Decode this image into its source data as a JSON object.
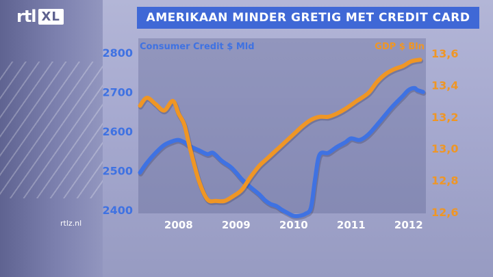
{
  "header": {
    "logo_rtl": "rtl",
    "logo_xl": "XL",
    "title": "AMERIKAAN MINDER GRETIG MET CREDIT CARD"
  },
  "footer": {
    "source": "rtlz.nl"
  },
  "colors": {
    "consumer_credit": "#3f72e2",
    "gdp": "#ef9625",
    "left_ticks": "#3f72e2",
    "right_ticks": "#ef9625",
    "title_bar": "#3f68d6"
  },
  "chart_data": {
    "type": "line",
    "title": "AMERIKAAN MINDER GRETIG MET CREDIT CARD",
    "xlabel": "",
    "x_ticks": [
      "2008",
      "2009",
      "2010",
      "2011",
      "2012"
    ],
    "x_tick_values": [
      2008,
      2009,
      2010,
      2011,
      2012
    ],
    "xlim": [
      2007.3,
      2012.3
    ],
    "grid": false,
    "legend": "top-left and top-right axis titles",
    "left_axis": {
      "title": "Consumer Credit $ Mld",
      "ticks": [
        "2800",
        "2700",
        "2600",
        "2500",
        "2400"
      ],
      "tick_values": [
        2800,
        2700,
        2600,
        2500,
        2400
      ],
      "range": [
        2330,
        2800
      ]
    },
    "right_axis": {
      "title": "GDP $ Bln",
      "ticks": [
        "13,6",
        "13,4",
        "13,2",
        "13,0",
        "12,8",
        "12,6"
      ],
      "tick_values": [
        13.6,
        13.4,
        13.2,
        13.0,
        12.8,
        12.6
      ],
      "range": [
        12.6,
        13.6
      ]
    },
    "series": [
      {
        "name": "Consumer Credit $ Mld",
        "axis": "left",
        "x": [
          2007.33,
          2007.45,
          2007.6,
          2007.75,
          2007.9,
          2008.0,
          2008.1,
          2008.2,
          2008.35,
          2008.5,
          2008.6,
          2008.75,
          2008.9,
          2009.0,
          2009.1,
          2009.25,
          2009.4,
          2009.5,
          2009.6,
          2009.7,
          2009.8,
          2009.9,
          2010.0,
          2010.1,
          2010.2,
          2010.3,
          2010.37,
          2010.45,
          2010.6,
          2010.75,
          2010.9,
          2011.0,
          2011.15,
          2011.3,
          2011.5,
          2011.7,
          2011.9,
          2012.0,
          2012.1,
          2012.15,
          2012.25
        ],
        "values": [
          2495,
          2520,
          2545,
          2565,
          2575,
          2578,
          2572,
          2562,
          2552,
          2542,
          2545,
          2525,
          2510,
          2495,
          2478,
          2458,
          2440,
          2425,
          2415,
          2410,
          2400,
          2392,
          2385,
          2385,
          2390,
          2405,
          2475,
          2540,
          2545,
          2560,
          2572,
          2582,
          2578,
          2592,
          2625,
          2660,
          2690,
          2705,
          2710,
          2705,
          2700
        ]
      },
      {
        "name": "GDP $ Bln",
        "axis": "right",
        "x": [
          2007.33,
          2007.45,
          2007.6,
          2007.75,
          2007.9,
          2008.0,
          2008.1,
          2008.2,
          2008.35,
          2008.5,
          2008.65,
          2008.8,
          2008.95,
          2009.1,
          2009.25,
          2009.4,
          2009.55,
          2009.7,
          2009.85,
          2010.0,
          2010.15,
          2010.3,
          2010.45,
          2010.6,
          2010.75,
          2010.9,
          2011.1,
          2011.3,
          2011.45,
          2011.6,
          2011.75,
          2011.9,
          2012.05,
          2012.2
        ],
        "values": [
          13.27,
          13.32,
          13.28,
          13.24,
          13.3,
          13.22,
          13.15,
          13.0,
          12.8,
          12.68,
          12.67,
          12.67,
          12.7,
          12.74,
          12.82,
          12.89,
          12.94,
          12.99,
          13.04,
          13.09,
          13.14,
          13.18,
          13.2,
          13.2,
          13.22,
          13.25,
          13.3,
          13.35,
          13.42,
          13.47,
          13.5,
          13.52,
          13.55,
          13.56
        ]
      }
    ]
  }
}
